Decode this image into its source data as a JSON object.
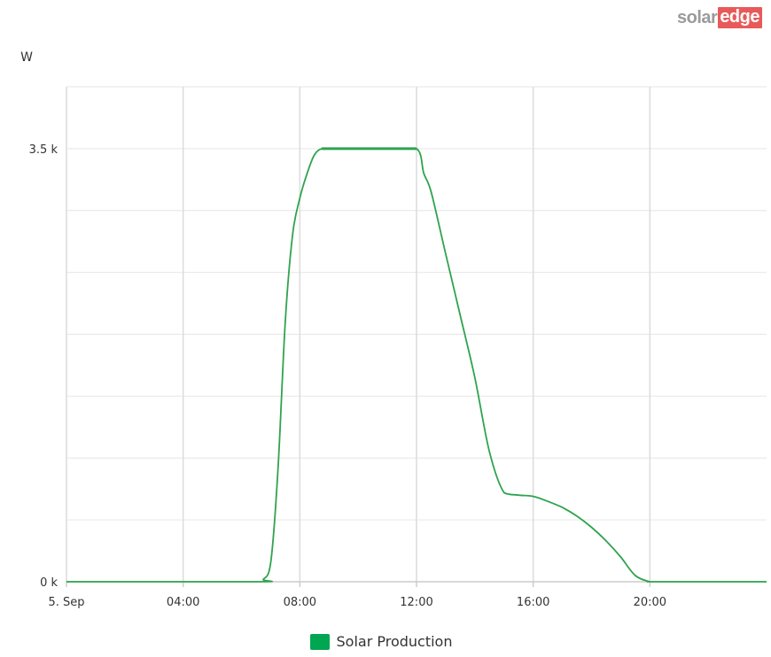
{
  "logo": {
    "solar": "solar",
    "edge": "edge"
  },
  "chart_data": {
    "type": "line",
    "ylabel": "W",
    "xlim": [
      "00:00",
      "24:00"
    ],
    "ylim": [
      0,
      4000
    ],
    "x_ticks": [
      "5. Sep",
      "04:00",
      "08:00",
      "12:00",
      "16:00",
      "20:00"
    ],
    "y_ticks": [
      {
        "value": 0,
        "label": "0 k"
      },
      {
        "value": 3500,
        "label": "3.5 k"
      }
    ],
    "grid": true,
    "legend_position": "bottom-center",
    "series": [
      {
        "name": "Solar Production",
        "color": "#2fa34f",
        "swatch_color": "#00a651",
        "x": [
          "00:00",
          "06:30",
          "06:45",
          "07:00",
          "07:15",
          "07:30",
          "07:45",
          "08:00",
          "08:15",
          "08:30",
          "08:45",
          "09:00",
          "10:00",
          "11:00",
          "12:00",
          "12:15",
          "12:30",
          "13:00",
          "13:30",
          "14:00",
          "14:30",
          "15:00",
          "15:30",
          "16:00",
          "16:30",
          "17:00",
          "17:30",
          "18:00",
          "18:30",
          "19:00",
          "19:30",
          "20:00",
          "20:15",
          "24:00"
        ],
        "y": [
          0,
          0,
          20,
          150,
          900,
          2100,
          2800,
          3100,
          3300,
          3450,
          3500,
          3500,
          3500,
          3500,
          3500,
          3300,
          3150,
          2650,
          2150,
          1650,
          1050,
          720,
          700,
          690,
          650,
          600,
          530,
          440,
          330,
          200,
          50,
          0,
          0,
          0
        ]
      }
    ]
  }
}
